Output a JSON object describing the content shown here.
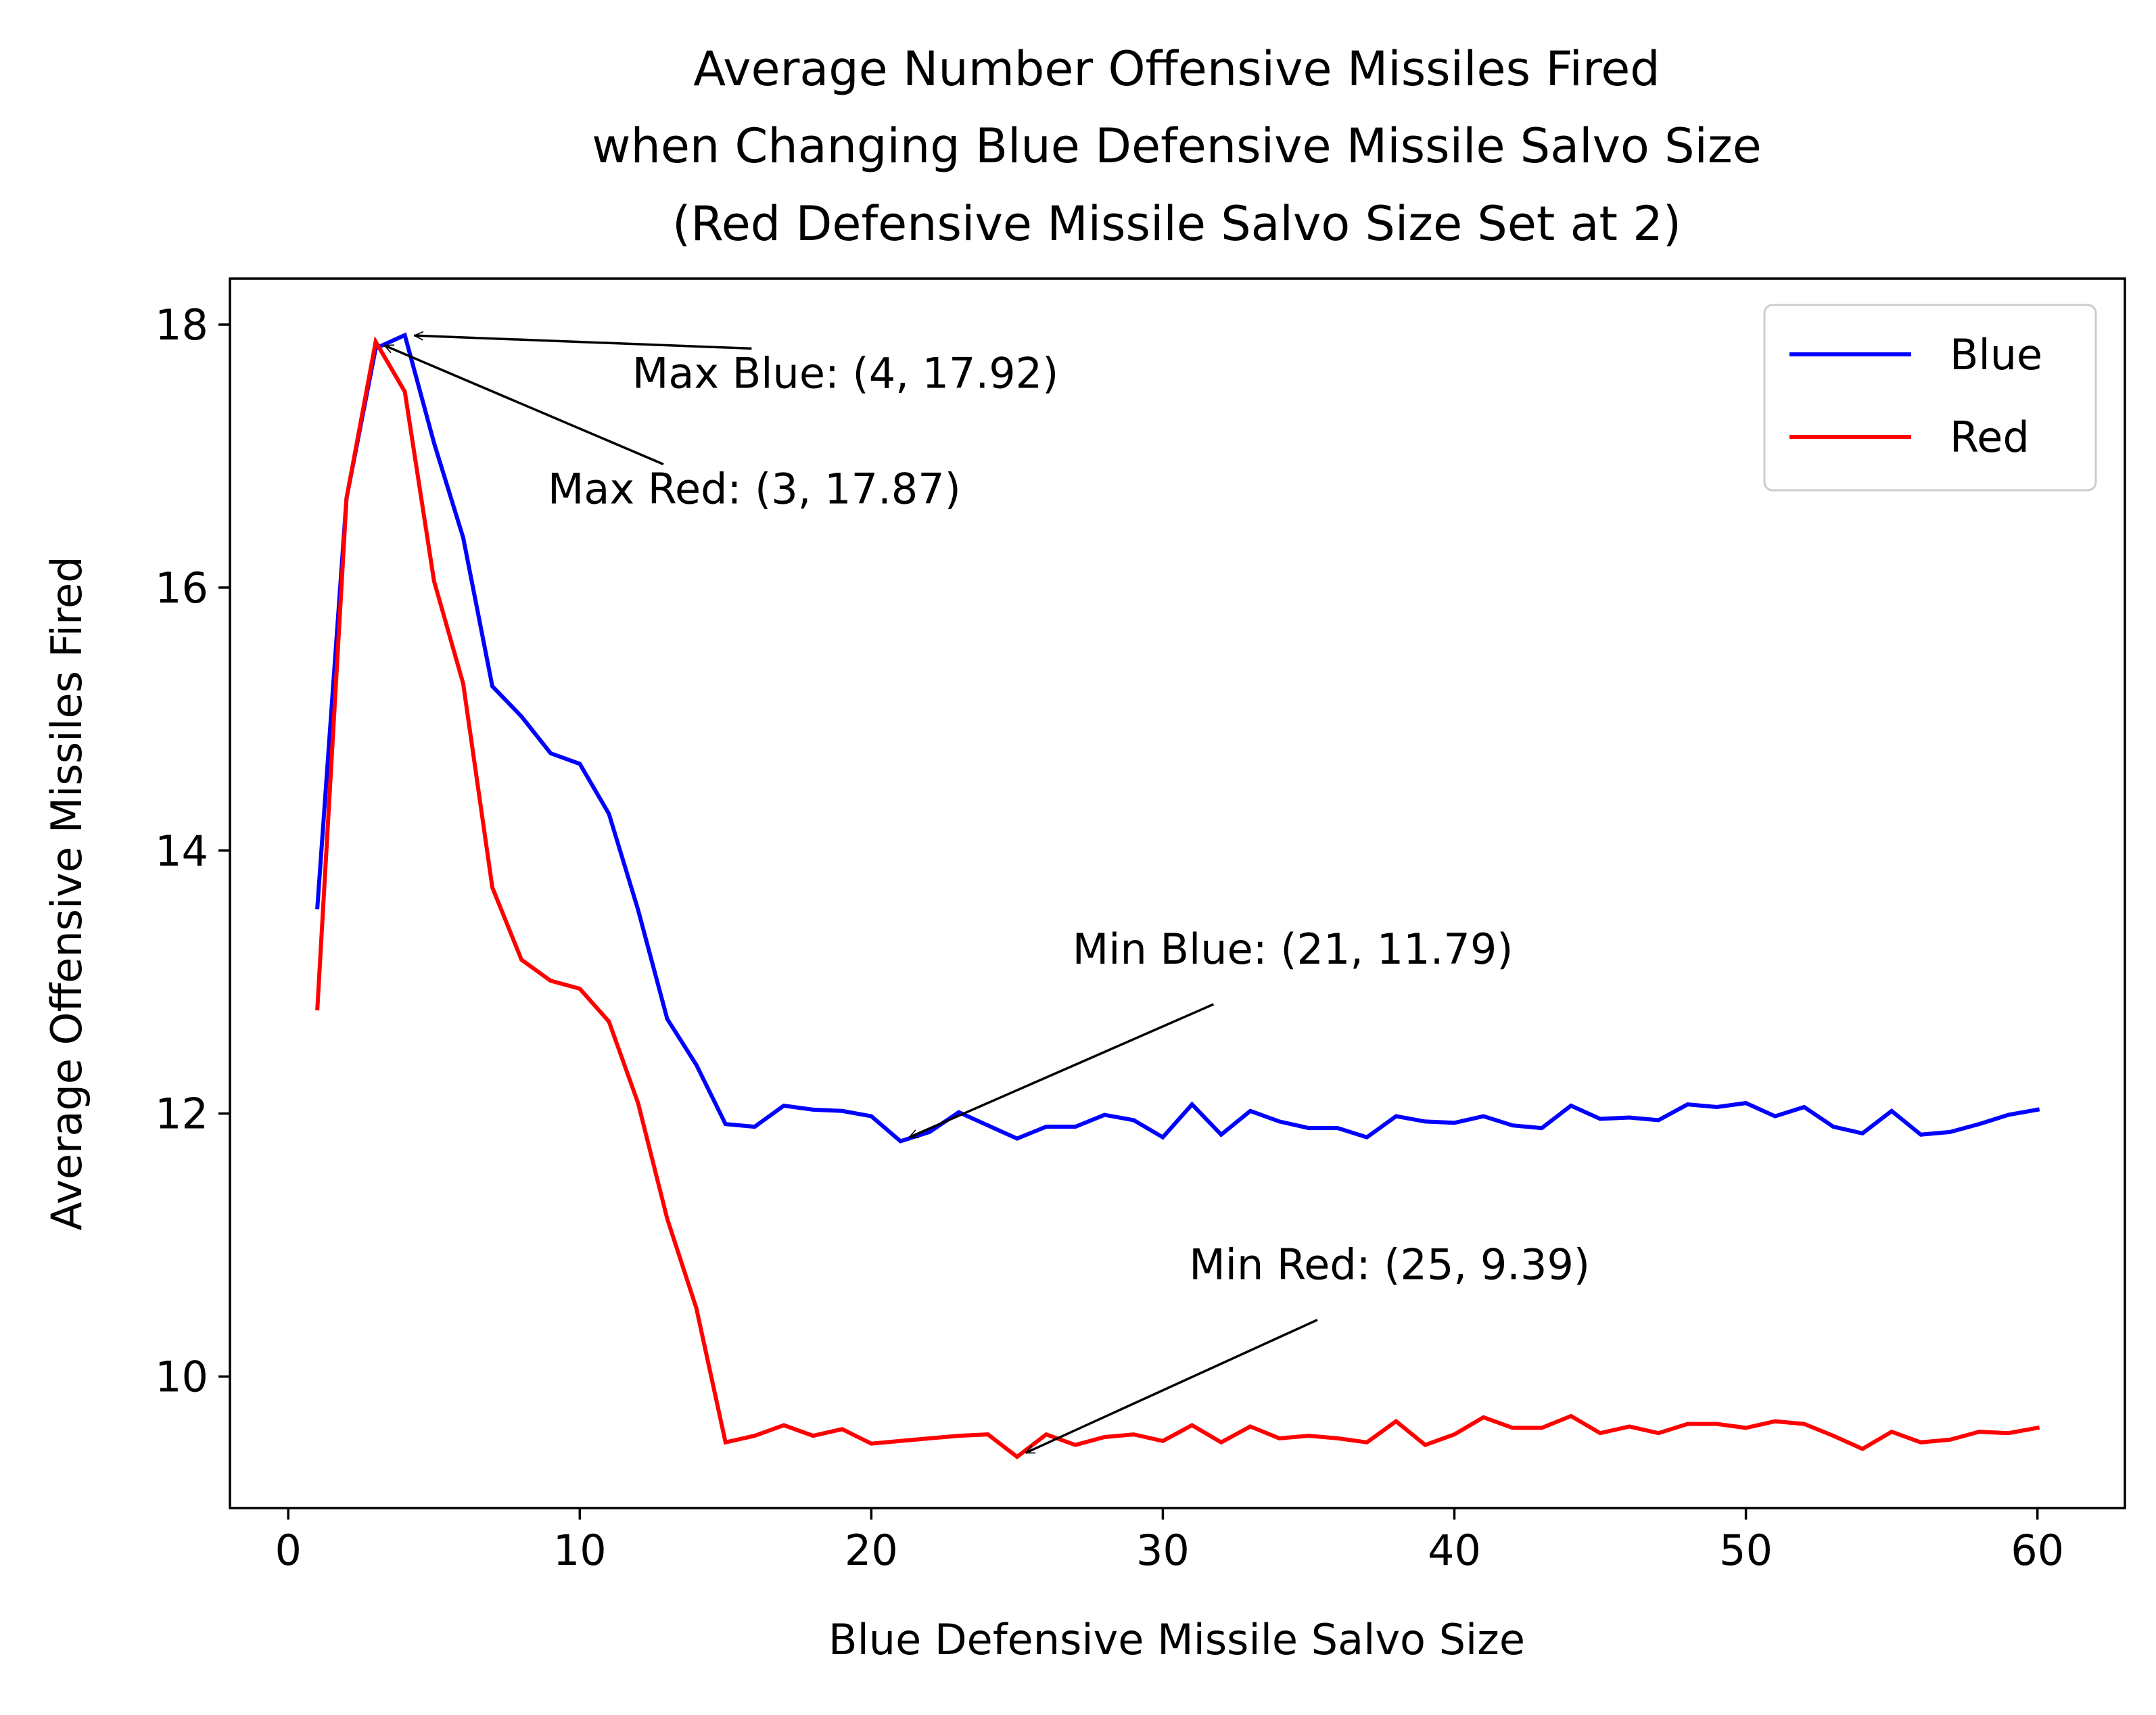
{
  "chart_data": {
    "type": "line",
    "title": [
      "Average Number Offensive Missiles Fired",
      "when Changing Blue Defensive Missile Salvo Size",
      "(Red Defensive Missile Salvo Size Set at 2)"
    ],
    "xlabel": "Blue Defensive Missile Salvo Size",
    "ylabel": "Average Offensive Missiles Fired",
    "xlim": [
      -2,
      63
    ],
    "ylim": [
      9.0,
      18.35
    ],
    "xticks": [
      0,
      10,
      20,
      30,
      40,
      50,
      60
    ],
    "yticks": [
      10,
      12,
      14,
      16,
      18
    ],
    "legend": {
      "position": "top-right"
    },
    "grid": false,
    "x": [
      1,
      2,
      3,
      4,
      5,
      6,
      7,
      8,
      9,
      10,
      11,
      12,
      13,
      14,
      15,
      16,
      17,
      18,
      19,
      20,
      21,
      22,
      23,
      24,
      25,
      26,
      27,
      28,
      29,
      30,
      31,
      32,
      33,
      34,
      35,
      36,
      37,
      38,
      39,
      40,
      41,
      42,
      43,
      44,
      45,
      46,
      47,
      48,
      49,
      50,
      51,
      52,
      53,
      54,
      55,
      56,
      57,
      58,
      59,
      60
    ],
    "series": [
      {
        "name": "Blue",
        "color": "#0000ff",
        "values": [
          13.57,
          16.68,
          17.82,
          17.92,
          17.1,
          16.38,
          15.25,
          15.02,
          14.74,
          14.66,
          14.28,
          13.55,
          12.72,
          12.37,
          11.92,
          11.9,
          12.06,
          12.03,
          12.02,
          11.98,
          11.79,
          11.86,
          12.01,
          11.91,
          11.81,
          11.9,
          11.9,
          11.99,
          11.95,
          11.82,
          12.07,
          11.84,
          12.02,
          11.94,
          11.89,
          11.89,
          11.82,
          11.98,
          11.94,
          11.93,
          11.98,
          11.91,
          11.89,
          12.06,
          11.96,
          11.97,
          11.95,
          12.07,
          12.05,
          12.08,
          11.98,
          12.05,
          11.9,
          11.85,
          12.02,
          11.84,
          11.86,
          11.92,
          11.99,
          12.03
        ]
      },
      {
        "name": "Red",
        "color": "#ff0000",
        "values": [
          12.8,
          16.68,
          17.87,
          17.49,
          16.05,
          15.27,
          13.72,
          13.17,
          13.01,
          12.95,
          12.7,
          12.08,
          11.2,
          10.52,
          9.5,
          9.55,
          9.63,
          9.55,
          9.6,
          9.49,
          9.51,
          9.53,
          9.55,
          9.56,
          9.39,
          9.56,
          9.48,
          9.54,
          9.56,
          9.51,
          9.63,
          9.5,
          9.62,
          9.53,
          9.55,
          9.53,
          9.5,
          9.66,
          9.48,
          9.56,
          9.69,
          9.61,
          9.61,
          9.7,
          9.57,
          9.62,
          9.57,
          9.64,
          9.64,
          9.61,
          9.66,
          9.64,
          9.55,
          9.45,
          9.58,
          9.5,
          9.52,
          9.58,
          9.57,
          9.61
        ]
      }
    ],
    "annotations": [
      {
        "text": "Max Blue: (4, 17.92)",
        "point": [
          4,
          17.92
        ],
        "text_at": [
          11.8,
          17.52
        ],
        "anchor": "start"
      },
      {
        "text": "Max Red: (3, 17.87)",
        "point": [
          3,
          17.87
        ],
        "text_at": [
          8.9,
          16.64
        ],
        "anchor": "start"
      },
      {
        "text": "Min Blue: (21, 11.79)",
        "point": [
          21,
          11.79
        ],
        "text_at": [
          26.9,
          13.14
        ],
        "anchor": "start"
      },
      {
        "text": "Min Red: (25, 9.39)",
        "point": [
          25,
          9.39
        ],
        "text_at": [
          30.9,
          10.74
        ],
        "anchor": "start"
      }
    ]
  }
}
